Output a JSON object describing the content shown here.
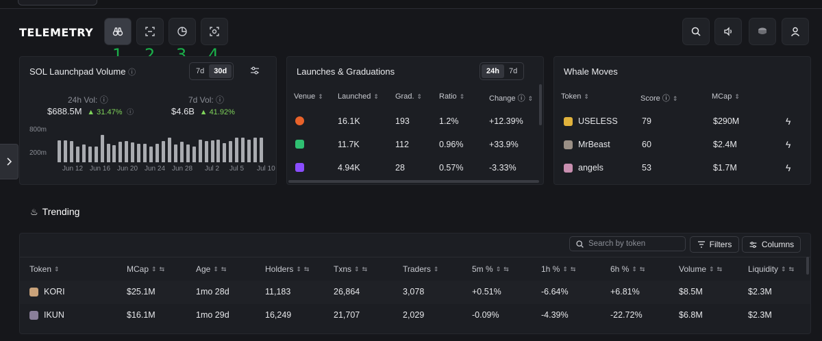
{
  "brand": "TELEMETRY",
  "nav": {
    "buttons": [
      {
        "name": "binoculars-icon",
        "number": "1"
      },
      {
        "name": "scan-icon",
        "number": "2"
      },
      {
        "name": "pie-chart-icon",
        "number": "3"
      },
      {
        "name": "scan-eye-icon",
        "number": "4"
      }
    ]
  },
  "volume": {
    "title": "SOL Launchpad Volume",
    "tabs": [
      "7d",
      "30d"
    ],
    "active_tab": "30d",
    "vol24_label": "24h Vol:",
    "vol24_value": "$688.5M",
    "vol24_change": "31.47%",
    "vol7_label": "7d Vol:",
    "vol7_value": "$4.6B",
    "vol7_change": "41.92%",
    "y_labels": [
      "800m",
      "200m"
    ],
    "x_labels": [
      "Jun 12",
      "Jun 16",
      "Jun 20",
      "Jun 24",
      "Jun 28",
      "Jul 2",
      "Jul 5",
      "Jul 10"
    ]
  },
  "chart_data": {
    "type": "bar",
    "title": "SOL Launchpad Volume",
    "y_ticks": [
      "200m",
      "800m"
    ],
    "x_ticks": [
      "Jun 12",
      "Jun 16",
      "Jun 20",
      "Jun 24",
      "Jun 28",
      "Jul 2",
      "Jul 5",
      "Jul 10"
    ],
    "values": [
      540,
      540,
      520,
      390,
      430,
      390,
      380,
      680,
      460,
      420,
      500,
      520,
      490,
      450,
      460,
      390,
      450,
      520,
      600,
      440,
      500,
      440,
      380,
      560,
      520,
      540,
      560,
      480,
      520,
      600,
      600,
      560,
      600,
      600
    ],
    "unit": "$M"
  },
  "launches": {
    "title": "Launches & Graduations",
    "tabs": [
      "24h",
      "7d"
    ],
    "active_tab": "24h",
    "headers": [
      "Venue",
      "Launched",
      "Grad.",
      "Ratio",
      "Change"
    ],
    "rows": [
      {
        "icon_color": "#e8622a",
        "launched": "16.1K",
        "grad": "193",
        "ratio": "1.2%",
        "change": "+12.39%",
        "dir": "up"
      },
      {
        "icon_color": "#2fbf71",
        "launched": "11.7K",
        "grad": "112",
        "ratio": "0.96%",
        "change": "+33.9%",
        "dir": "up"
      },
      {
        "icon_color": "#8a4dff",
        "launched": "4.94K",
        "grad": "28",
        "ratio": "0.57%",
        "change": "-3.33%",
        "dir": "down"
      }
    ]
  },
  "whales": {
    "title": "Whale Moves",
    "headers": [
      "Token",
      "Score",
      "MCap"
    ],
    "rows": [
      {
        "token": "USELESS",
        "icon_color": "#e0b23c",
        "score": "79",
        "mcap": "$290M"
      },
      {
        "token": "MrBeast",
        "icon_color": "#9a8f86",
        "score": "60",
        "mcap": "$2.4M"
      },
      {
        "token": "angels",
        "icon_color": "#c98fb0",
        "score": "53",
        "mcap": "$1.7M"
      }
    ]
  },
  "trending": {
    "title": "Trending",
    "search_placeholder": "Search by token",
    "filters_label": "Filters",
    "columns_label": "Columns",
    "headers": [
      "Token",
      "MCap",
      "Age",
      "Holders",
      "Txns",
      "Traders",
      "5m %",
      "1h %",
      "6h %",
      "Volume",
      "Liquidity"
    ],
    "rows": [
      {
        "token": "KORI",
        "icon_color": "#c9a27a",
        "mcap": "$25.1M",
        "age": "1mo 28d",
        "holders": "11,183",
        "txns": "26,864",
        "traders": "3,078",
        "m5": "+0.51%",
        "m5dir": "up",
        "h1": "-6.64%",
        "h1dir": "down",
        "h6": "+6.81%",
        "h6dir": "up",
        "volume": "$8.5M",
        "liquidity": "$2.3M"
      },
      {
        "token": "IKUN",
        "icon_color": "#8a7f9a",
        "mcap": "$16.1M",
        "age": "1mo 29d",
        "holders": "16,249",
        "txns": "21,707",
        "traders": "2,029",
        "m5": "-0.09%",
        "m5dir": "down",
        "h1": "-4.39%",
        "h1dir": "down",
        "h6": "-22.72%",
        "h6dir": "down",
        "volume": "$6.8M",
        "liquidity": "$2.3M"
      }
    ]
  }
}
